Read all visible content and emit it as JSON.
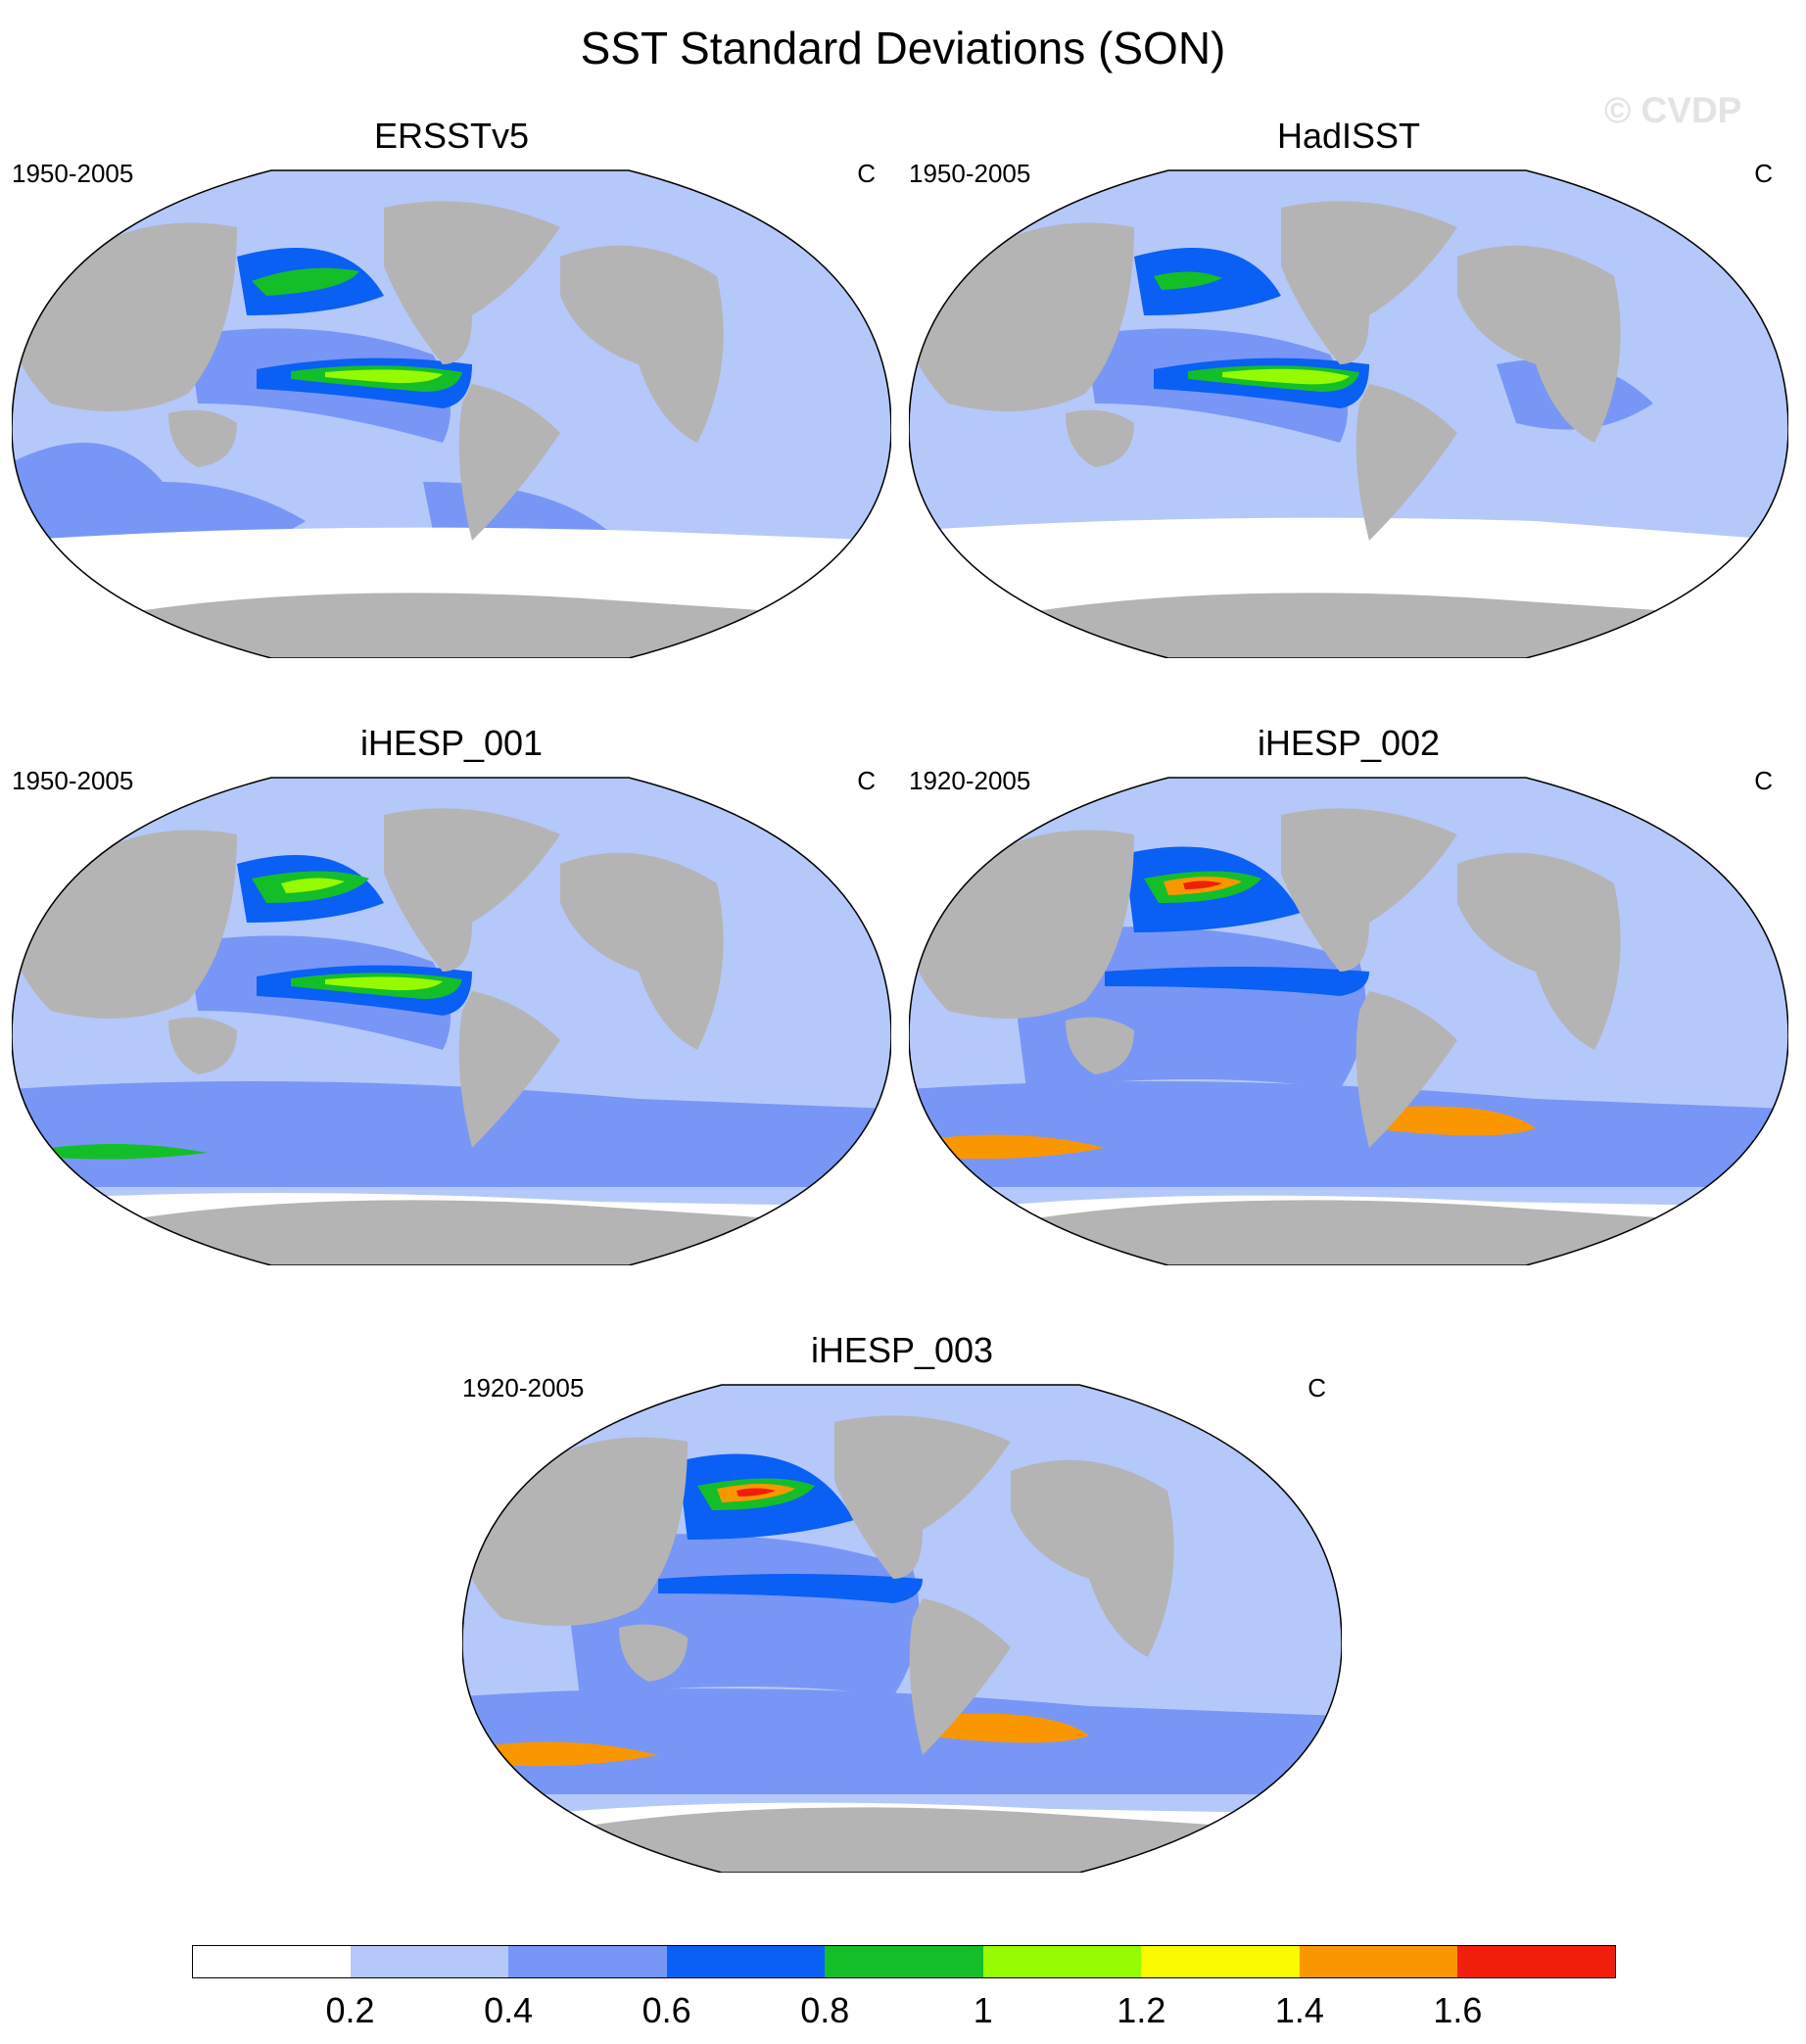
{
  "title": "SST Standard Deviations (SON)",
  "watermark": "© CVDP",
  "colors": {
    "land": "#b4b4b4",
    "ocean_lowest": "#ffffff",
    "scale": [
      "#ffffff",
      "#b4c8fa",
      "#7896f5",
      "#0a5ff5",
      "#14be28",
      "#96fa00",
      "#fafa00",
      "#fa9600",
      "#f01e0a"
    ]
  },
  "colorbar": {
    "labels": [
      "0.2",
      "0.4",
      "0.6",
      "0.8",
      "1",
      "1.2",
      "1.4",
      "1.6"
    ],
    "levels": [
      0.2,
      0.4,
      0.6,
      0.8,
      1.0,
      1.2,
      1.4,
      1.6
    ]
  },
  "panels": [
    {
      "title": "ERSSTv5",
      "period": "1950-2005",
      "units": "C"
    },
    {
      "title": "HadISST",
      "period": "1950-2005",
      "units": "C"
    },
    {
      "title": "iHESP_001",
      "period": "1950-2005",
      "units": "C"
    },
    {
      "title": "iHESP_002",
      "period": "1920-2005",
      "units": "C"
    },
    {
      "title": "iHESP_003",
      "period": "1920-2005",
      "units": "C"
    }
  ]
}
